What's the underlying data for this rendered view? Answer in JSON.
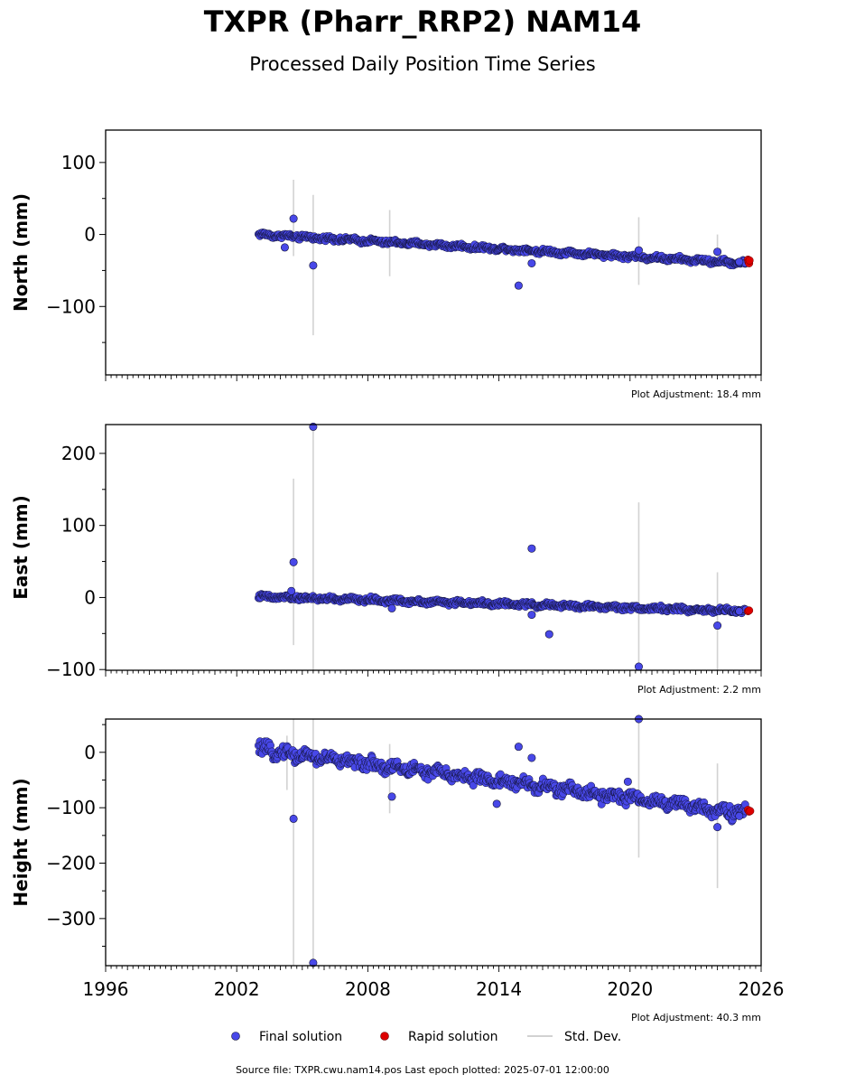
{
  "header": {
    "title": "TXPR (Pharr_RRP2) NAM14",
    "subtitle": "Processed Daily Position Time Series"
  },
  "legend": {
    "final_label": "Final solution",
    "rapid_label": "Rapid solution",
    "std_label": "Std. Dev."
  },
  "footer": {
    "source": "Source file: TXPR.cwu.nam14.pos  Last epoch plotted: 2025-07-01 12:00:00"
  },
  "colors": {
    "final": "#4848e8",
    "final_edge": "#111133",
    "rapid": "#dd0000",
    "stddev": "#d2d2d2"
  },
  "chart_data": [
    {
      "type": "scatter",
      "ylabel": "North (mm)",
      "adjustment": "Plot Adjustment: 18.4 mm",
      "xlim": [
        1996,
        2026
      ],
      "ylim": [
        -195,
        145
      ],
      "yticks": [
        100,
        0,
        -100
      ],
      "yticklabels": [
        "100",
        "0",
        "−100"
      ],
      "xticks": [
        1996,
        2002,
        2008,
        2014,
        2020,
        2026
      ],
      "xticklabels": [],
      "trend": {
        "start": [
          2003.0,
          0
        ],
        "end": [
          2025.3,
          -40
        ],
        "noise": 2.5
      },
      "final_outliers": [
        [
          2004.6,
          22
        ],
        [
          2004.2,
          -18
        ],
        [
          2005.5,
          -43
        ],
        [
          2014.9,
          -71
        ],
        [
          2015.5,
          -40
        ],
        [
          2020.4,
          -22
        ],
        [
          2024.0,
          -24
        ],
        [
          2025.0,
          -38
        ]
      ],
      "rapid_points": [
        [
          2025.4,
          -35
        ],
        [
          2025.42,
          -38
        ],
        [
          2025.45,
          -40
        ],
        [
          2025.47,
          -36
        ]
      ],
      "stddev_bars": [
        [
          2004.6,
          -30,
          76
        ],
        [
          2005.5,
          -140,
          55
        ],
        [
          2009.0,
          -58,
          34
        ],
        [
          2020.4,
          -70,
          24
        ],
        [
          2024.0,
          -36,
          0
        ]
      ]
    },
    {
      "type": "scatter",
      "ylabel": "East (mm)",
      "adjustment": "Plot Adjustment: 2.2 mm",
      "xlim": [
        1996,
        2026
      ],
      "ylim": [
        -101,
        240
      ],
      "yticks": [
        200,
        100,
        0,
        -100
      ],
      "yticklabels": [
        "200",
        "100",
        "0",
        "−100"
      ],
      "xticks": [
        1996,
        2002,
        2008,
        2014,
        2020,
        2026
      ],
      "xticklabels": [],
      "trend": {
        "start": [
          2003.0,
          1
        ],
        "end": [
          2025.3,
          -19
        ],
        "noise": 2.5
      },
      "final_outliers": [
        [
          2004.6,
          49
        ],
        [
          2004.5,
          9
        ],
        [
          2005.5,
          237
        ],
        [
          2009.1,
          -15
        ],
        [
          2015.5,
          68
        ],
        [
          2015.5,
          -24
        ],
        [
          2016.3,
          -51
        ],
        [
          2020.4,
          -96
        ],
        [
          2024.0,
          -39
        ],
        [
          2025.0,
          -19
        ]
      ],
      "rapid_points": [
        [
          2025.4,
          -19
        ],
        [
          2025.45,
          -18
        ]
      ],
      "stddev_bars": [
        [
          2004.6,
          -66,
          165
        ],
        [
          2005.5,
          -101,
          240
        ],
        [
          2020.4,
          -101,
          132
        ],
        [
          2024.0,
          -101,
          35
        ]
      ]
    },
    {
      "type": "scatter",
      "ylabel": "Height (mm)",
      "adjustment": "Plot Adjustment: 40.3 mm",
      "xlim": [
        1996,
        2026
      ],
      "ylim": [
        -385,
        60
      ],
      "yticks": [
        0,
        -100,
        -200,
        -300
      ],
      "yticklabels": [
        "0",
        "−100",
        "−200",
        "−300"
      ],
      "xticks": [
        1996,
        2002,
        2008,
        2014,
        2020,
        2026
      ],
      "xticklabels": [
        "1996",
        "2002",
        "2008",
        "2014",
        "2020",
        "2026"
      ],
      "trend": {
        "start": [
          2003.0,
          5
        ],
        "end": [
          2025.3,
          -110
        ],
        "noise": 9
      },
      "final_outliers": [
        [
          2004.6,
          -120
        ],
        [
          2005.5,
          -380
        ],
        [
          2009.1,
          -80
        ],
        [
          2013.9,
          -93
        ],
        [
          2014.9,
          10
        ],
        [
          2015.5,
          -10
        ],
        [
          2019.9,
          -53
        ],
        [
          2020.4,
          60
        ],
        [
          2024.0,
          -135
        ],
        [
          2025.0,
          -115
        ]
      ],
      "rapid_points": [
        [
          2025.4,
          -104
        ],
        [
          2025.45,
          -107
        ],
        [
          2025.5,
          -106
        ]
      ],
      "stddev_bars": [
        [
          2004.3,
          -68,
          30
        ],
        [
          2004.6,
          -385,
          60
        ],
        [
          2005.5,
          -385,
          60
        ],
        [
          2009.0,
          -110,
          15
        ],
        [
          2020.4,
          -190,
          60
        ],
        [
          2024.0,
          -245,
          -20
        ]
      ]
    }
  ]
}
